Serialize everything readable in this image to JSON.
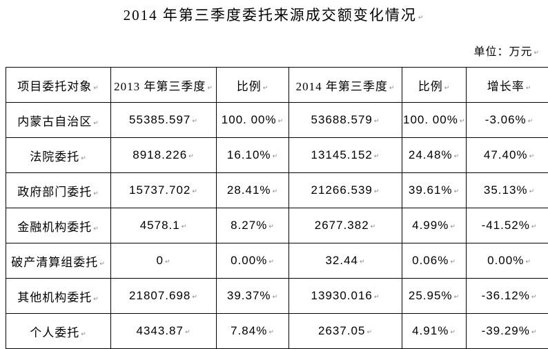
{
  "title": "2014 年第三季度委托来源成交额变化情况",
  "unit_label": "单位：万元",
  "paragraph_mark": "↵",
  "table": {
    "headers": [
      "项目委托对象",
      "2013 年第三季度",
      "比例",
      "2014 年第三季度",
      "比例",
      "增长率"
    ],
    "rows": [
      [
        "内蒙古自治区",
        "55385.597",
        "100. 00%",
        "53688.579",
        "100. 00%",
        "-3.06%"
      ],
      [
        "法院委托",
        "8918.226",
        "16.10%",
        "13145.152",
        "24.48%",
        "47.40%"
      ],
      [
        "政府部门委托",
        "15737.702",
        "28.41%",
        "21266.539",
        "39.61%",
        "35.13%"
      ],
      [
        "金融机构委托",
        "4578.1",
        "8.27%",
        "2677.382",
        "4.99%",
        "-41.52%"
      ],
      [
        "破产清算组委托",
        "0",
        "0.00%",
        "32.44",
        "0.06%",
        "0.00%"
      ],
      [
        "其他机构委托",
        "21807.698",
        "39.37%",
        "13930.016",
        "25.95%",
        "-36.12%"
      ],
      [
        "个人委托",
        "4343.87",
        "7.84%",
        "2637.05",
        "4.91%",
        "-39.29%"
      ]
    ]
  }
}
